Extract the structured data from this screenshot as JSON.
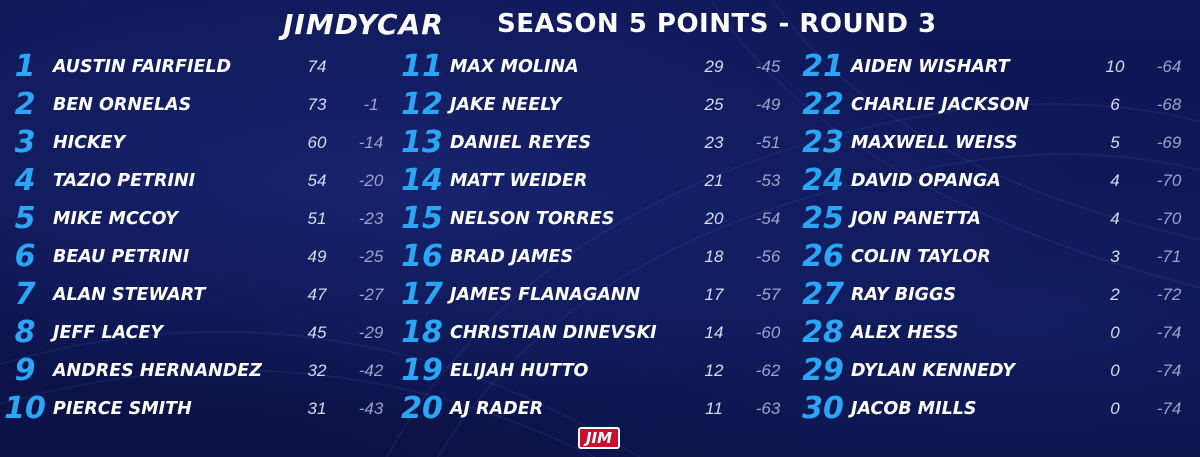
{
  "header": {
    "logo": "JIMDYCAR",
    "title": "SEASON 5 POINTS - ROUND 3"
  },
  "footer": {
    "badge": "JIM"
  },
  "colors": {
    "position": "#2aa6f5",
    "background": "#0d1550",
    "badge": "#c8102e"
  },
  "standings": [
    {
      "pos": "1",
      "name": "AUSTIN FAIRFIELD",
      "points": "74",
      "gap": ""
    },
    {
      "pos": "2",
      "name": "BEN ORNELAS",
      "points": "73",
      "gap": "-1"
    },
    {
      "pos": "3",
      "name": "HICKEY",
      "points": "60",
      "gap": "-14"
    },
    {
      "pos": "4",
      "name": "TAZIO PETRINI",
      "points": "54",
      "gap": "-20"
    },
    {
      "pos": "5",
      "name": "MIKE MCCOY",
      "points": "51",
      "gap": "-23"
    },
    {
      "pos": "6",
      "name": "BEAU PETRINI",
      "points": "49",
      "gap": "-25"
    },
    {
      "pos": "7",
      "name": "ALAN STEWART",
      "points": "47",
      "gap": "-27"
    },
    {
      "pos": "8",
      "name": "JEFF LACEY",
      "points": "45",
      "gap": "-29"
    },
    {
      "pos": "9",
      "name": "ANDRES HERNANDEZ",
      "points": "32",
      "gap": "-42"
    },
    {
      "pos": "10",
      "name": "PIERCE SMITH",
      "points": "31",
      "gap": "-43"
    },
    {
      "pos": "11",
      "name": "MAX MOLINA",
      "points": "29",
      "gap": "-45"
    },
    {
      "pos": "12",
      "name": "JAKE NEELY",
      "points": "25",
      "gap": "-49"
    },
    {
      "pos": "13",
      "name": "DANIEL REYES",
      "points": "23",
      "gap": "-51"
    },
    {
      "pos": "14",
      "name": "MATT WEIDER",
      "points": "21",
      "gap": "-53"
    },
    {
      "pos": "15",
      "name": "NELSON TORRES",
      "points": "20",
      "gap": "-54"
    },
    {
      "pos": "16",
      "name": "BRAD JAMES",
      "points": "18",
      "gap": "-56"
    },
    {
      "pos": "17",
      "name": "JAMES FLANAGANN",
      "points": "17",
      "gap": "-57"
    },
    {
      "pos": "18",
      "name": "CHRISTIAN DINEVSKI",
      "points": "14",
      "gap": "-60"
    },
    {
      "pos": "19",
      "name": "ELIJAH HUTTO",
      "points": "12",
      "gap": "-62"
    },
    {
      "pos": "20",
      "name": "AJ RADER",
      "points": "11",
      "gap": "-63"
    },
    {
      "pos": "21",
      "name": "AIDEN WISHART",
      "points": "10",
      "gap": "-64"
    },
    {
      "pos": "22",
      "name": "CHARLIE JACKSON",
      "points": "6",
      "gap": "-68"
    },
    {
      "pos": "23",
      "name": "MAXWELL WEISS",
      "points": "5",
      "gap": "-69"
    },
    {
      "pos": "24",
      "name": "DAVID OPANGA",
      "points": "4",
      "gap": "-70"
    },
    {
      "pos": "25",
      "name": "JON PANETTA",
      "points": "4",
      "gap": "-70"
    },
    {
      "pos": "26",
      "name": "COLIN TAYLOR",
      "points": "3",
      "gap": "-71"
    },
    {
      "pos": "27",
      "name": "RAY BIGGS",
      "points": "2",
      "gap": "-72"
    },
    {
      "pos": "28",
      "name": "ALEX HESS",
      "points": "0",
      "gap": "-74"
    },
    {
      "pos": "29",
      "name": "DYLAN KENNEDY",
      "points": "0",
      "gap": "-74"
    },
    {
      "pos": "30",
      "name": "JACOB MILLS",
      "points": "0",
      "gap": "-74"
    }
  ]
}
